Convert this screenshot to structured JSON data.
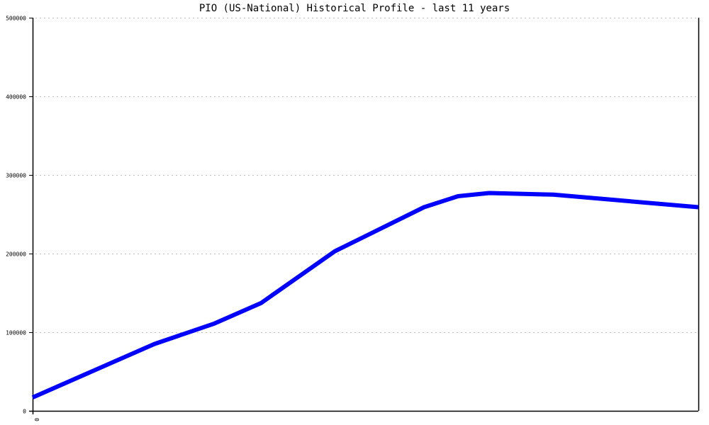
{
  "chart_data": {
    "type": "line",
    "title": "PIO (US-National) Historical Profile - last 11 years",
    "xlabel": "",
    "ylabel": "",
    "ylim": [
      0,
      500000
    ],
    "xlim": [
      0,
      10
    ],
    "yticks": [
      "0",
      "100000",
      "200000",
      "300000",
      "400000",
      "500000"
    ],
    "xticks": [
      "0"
    ],
    "grid": true,
    "line_color": "#0000ff",
    "series": [
      {
        "x": [
          0,
          1.83,
          2.73,
          3.43,
          4.54,
          5.88,
          6.39,
          6.86,
          7.82,
          10
        ],
        "values": [
          17000,
          85000,
          111000,
          137000,
          203000,
          259000,
          273000,
          277000,
          275000,
          259000
        ]
      }
    ]
  }
}
